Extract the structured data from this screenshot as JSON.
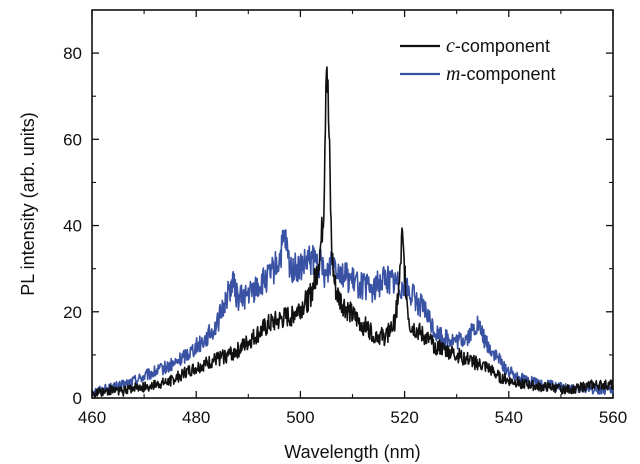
{
  "chart_data": {
    "type": "line",
    "xlabel": "Wavelength (nm)",
    "ylabel": "PL intensity (arb. units)",
    "xlim": [
      460,
      560
    ],
    "ylim": [
      0,
      90
    ],
    "x_ticks": [
      460,
      480,
      500,
      520,
      540,
      560
    ],
    "y_ticks": [
      0,
      20,
      40,
      60,
      80
    ],
    "x_tick_labels": [
      "460",
      "480",
      "500",
      "520",
      "540",
      "560"
    ],
    "y_tick_labels": [
      "0",
      "20",
      "40",
      "60",
      "80"
    ],
    "legend_position": "top-right",
    "grid": false,
    "series": [
      {
        "name_italic": "c",
        "name_rest": "-component",
        "color": "#111111",
        "x": [
          460,
          462,
          464,
          466,
          468,
          470,
          472,
          474,
          476,
          478,
          480,
          482,
          484,
          486,
          488,
          490,
          492,
          494,
          496,
          498,
          500,
          501,
          502,
          503,
          504,
          504.5,
          505,
          505.5,
          506,
          506.5,
          507,
          508,
          510,
          512,
          514,
          516,
          518,
          519,
          519.5,
          520,
          520.5,
          521,
          522,
          524,
          526,
          528,
          530,
          532,
          534,
          536,
          538,
          540,
          542,
          544,
          546,
          548,
          550,
          552,
          554,
          556,
          558,
          560
        ],
        "y": [
          1,
          1.5,
          2,
          1.5,
          2.5,
          2.5,
          3,
          3.5,
          4.5,
          6,
          7,
          8,
          9,
          10,
          11,
          13,
          15,
          17,
          18,
          19,
          21,
          22,
          24,
          28,
          36,
          45,
          82,
          60,
          34,
          27,
          24,
          22,
          19,
          17,
          15,
          14,
          17,
          26,
          37,
          30,
          22,
          17,
          16,
          14,
          12,
          11,
          10,
          9,
          8,
          7,
          5,
          4,
          3.5,
          3,
          2.5,
          2.5,
          2,
          2,
          2.5,
          3,
          3,
          3
        ]
      },
      {
        "name_italic": "m",
        "name_rest": "-component",
        "color": "#3a52a3",
        "x": [
          460,
          462,
          464,
          466,
          468,
          470,
          472,
          474,
          476,
          478,
          480,
          482,
          484,
          486,
          487,
          488,
          490,
          492,
          494,
          496,
          497,
          498,
          500,
          502,
          504,
          505,
          506,
          508,
          510,
          512,
          514,
          516,
          518,
          520,
          522,
          524,
          526,
          528,
          530,
          532,
          534,
          536,
          538,
          540,
          542,
          544,
          546,
          548,
          550,
          552,
          554,
          556,
          558,
          560
        ],
        "y": [
          1.5,
          2,
          2.5,
          3,
          4,
          5,
          6,
          7,
          8,
          10,
          12,
          14,
          17,
          24,
          27,
          23,
          24,
          26,
          28,
          32,
          37,
          30,
          30,
          32,
          31,
          28,
          33,
          29,
          27,
          26,
          25,
          28,
          27,
          26,
          23,
          20,
          15,
          14,
          13,
          14,
          17,
          12,
          9,
          6,
          5,
          4,
          3,
          3,
          2.5,
          2,
          2,
          2,
          2,
          1.5
        ]
      }
    ]
  }
}
